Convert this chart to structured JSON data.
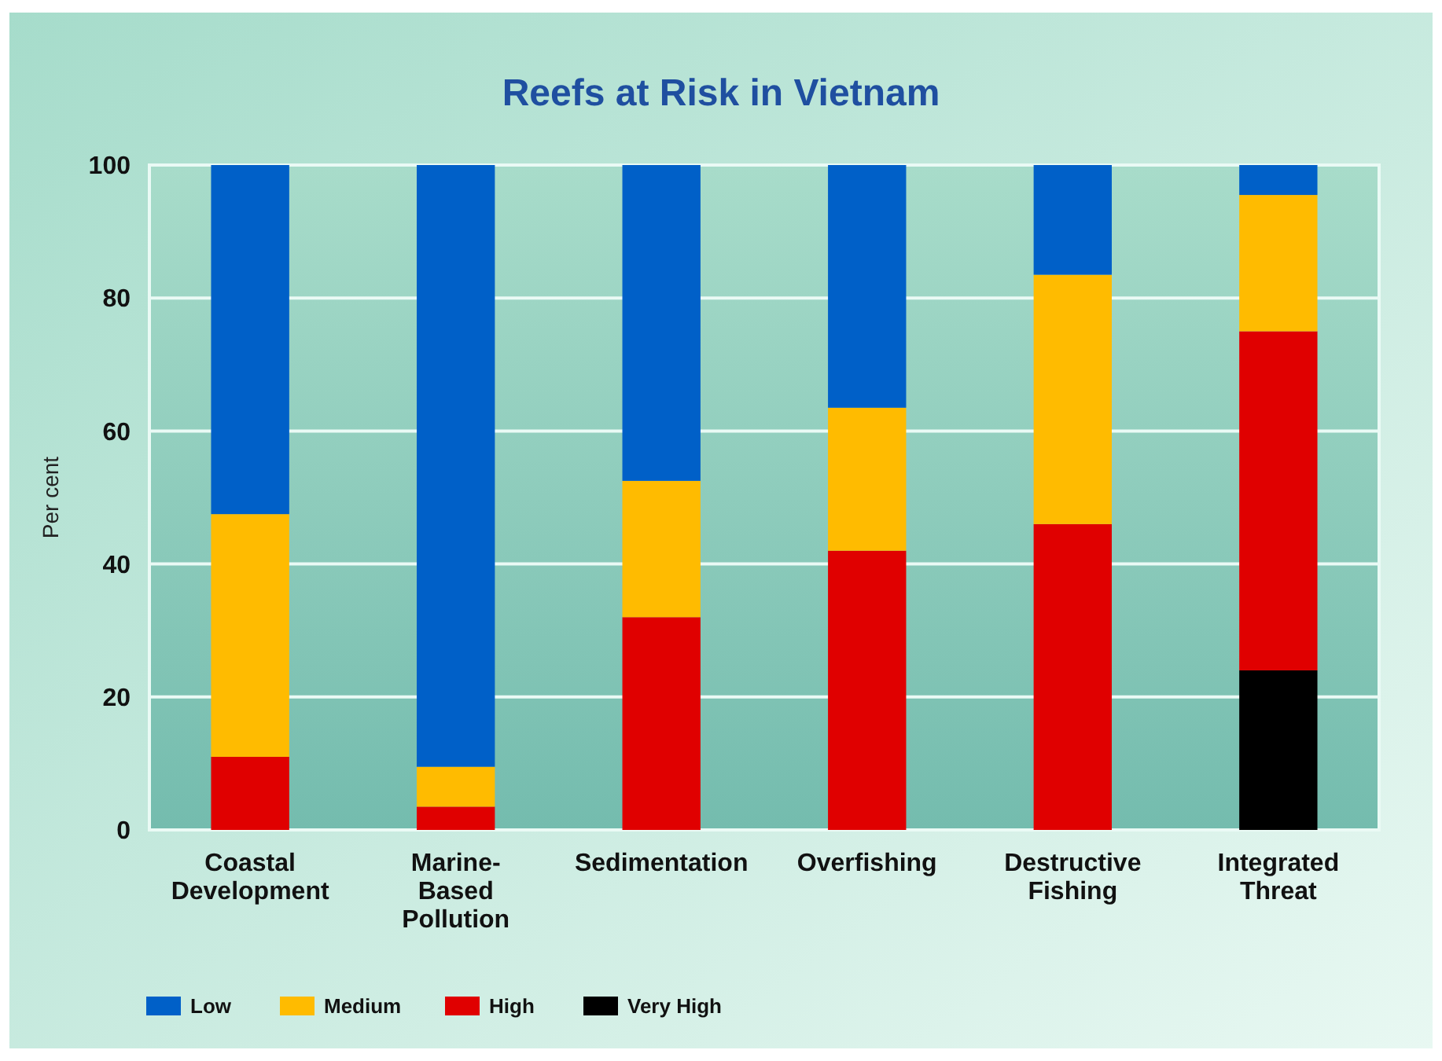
{
  "chart_data": {
    "type": "bar",
    "title": "Reefs at Risk in Vietnam",
    "ylabel": "Per cent",
    "stacked": true,
    "categories": [
      "Coastal Development",
      "Marine-Based Pollution",
      "Sedimentation",
      "Overfishing",
      "Destructive Fishing",
      "Integrated Threat"
    ],
    "series": [
      {
        "name": "Very High",
        "color": "#000000",
        "values": [
          0,
          0,
          0,
          0,
          0,
          24
        ]
      },
      {
        "name": "High",
        "color": "#e00000",
        "values": [
          11,
          3.5,
          32,
          42,
          46,
          51
        ]
      },
      {
        "name": "Medium",
        "color": "#ffbb00",
        "values": [
          36.5,
          6,
          20.5,
          21.5,
          37.5,
          20.5
        ]
      },
      {
        "name": "Low",
        "color": "#0060c8",
        "values": [
          52.5,
          90.5,
          47.5,
          36.5,
          16.5,
          4.5
        ]
      }
    ],
    "ylim": [
      0,
      100
    ],
    "yticks": [
      0,
      20,
      40,
      60,
      80,
      100
    ],
    "grid": "y",
    "legend": "bottom"
  }
}
